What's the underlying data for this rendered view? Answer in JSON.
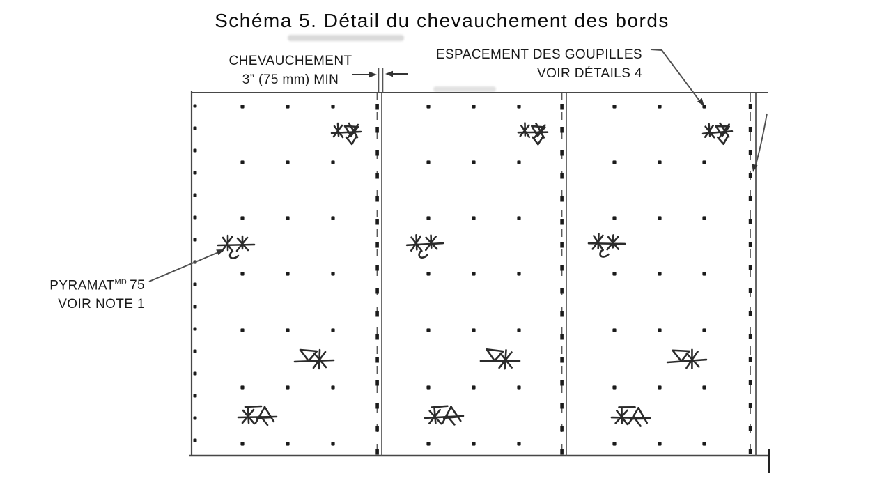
{
  "title": "Schéma 5. Détail du chevauchement des bords",
  "annotations": {
    "overlap": {
      "line1": "CHEVAUCHEMENT",
      "line2": "3” (75 mm) MIN"
    },
    "pin_spacing": {
      "line1": "ESPACEMENT DES GOUPILLES",
      "line2": "VOIR DÉTAILS 4"
    },
    "material": {
      "name": "PYRAMAT",
      "superscript": "MD",
      "number": "75",
      "line2": "VOIR NOTE 1"
    }
  },
  "diagram": {
    "panel_count": 3,
    "symbols": {
      "pin_dot": "square-dot",
      "anchor_cluster": "hand-drawn-asterisk-pin-cluster",
      "seam": "dashed-overlap-seam"
    },
    "colors": {
      "line": "#4f4f4f",
      "border": "#474747",
      "dot": "#1b1b1b",
      "star": "#2b2b2b",
      "arrow": "#333333",
      "text": "#161616",
      "background": "#ffffff"
    }
  }
}
